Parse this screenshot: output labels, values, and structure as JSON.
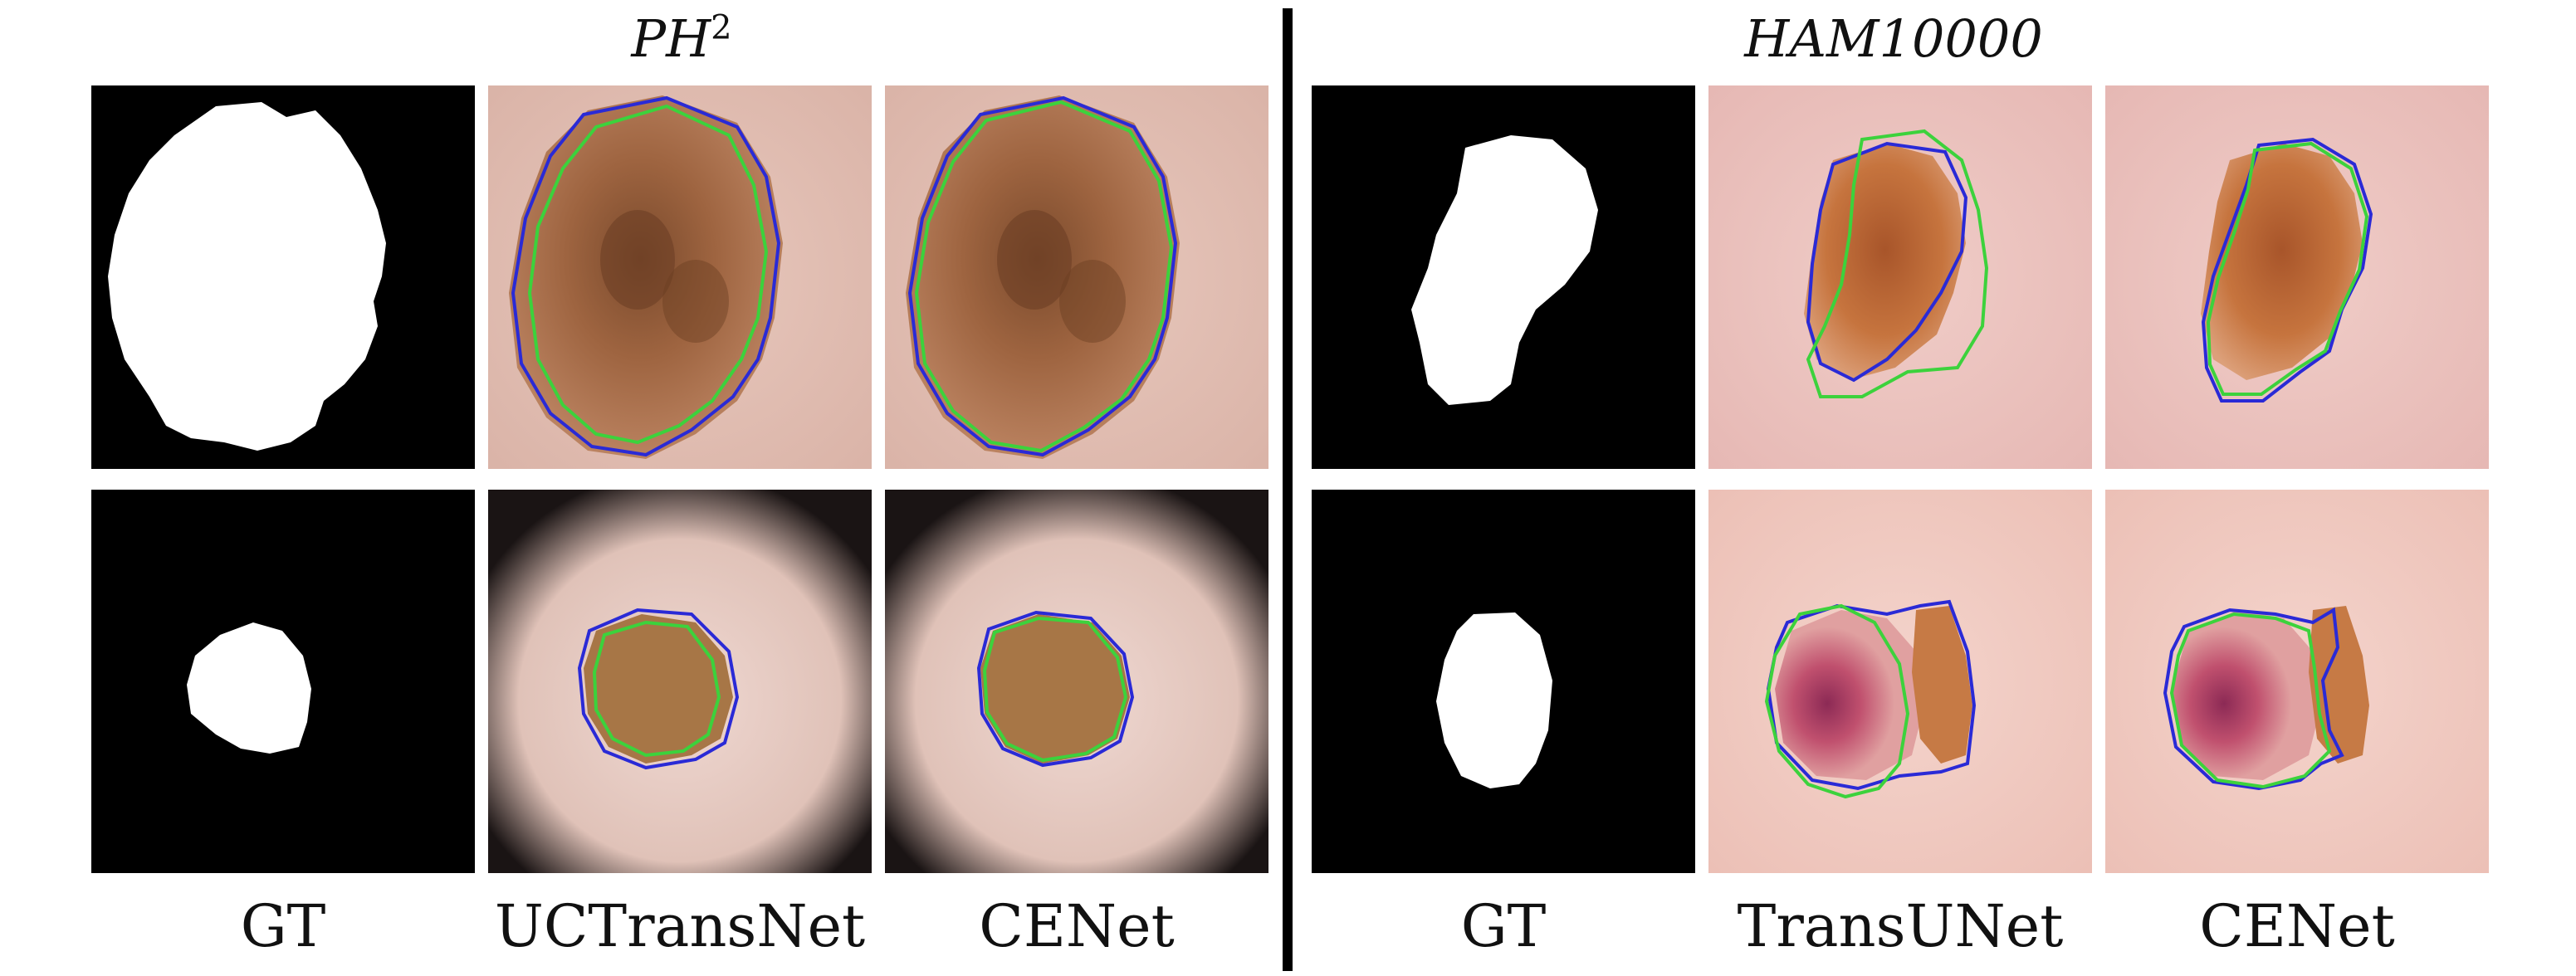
{
  "figure": {
    "groups": [
      {
        "title_main": "PH",
        "title_sup": "2",
        "columns": [
          "GT",
          "UCTransNet",
          "CENet"
        ]
      },
      {
        "title_main": "HAM10000",
        "title_sup": "",
        "columns": [
          "GT",
          "TransUNet",
          "CENet"
        ]
      }
    ],
    "contour_colors": {
      "ground_truth": "#3cd23c",
      "prediction": "#2a2ad6"
    }
  }
}
